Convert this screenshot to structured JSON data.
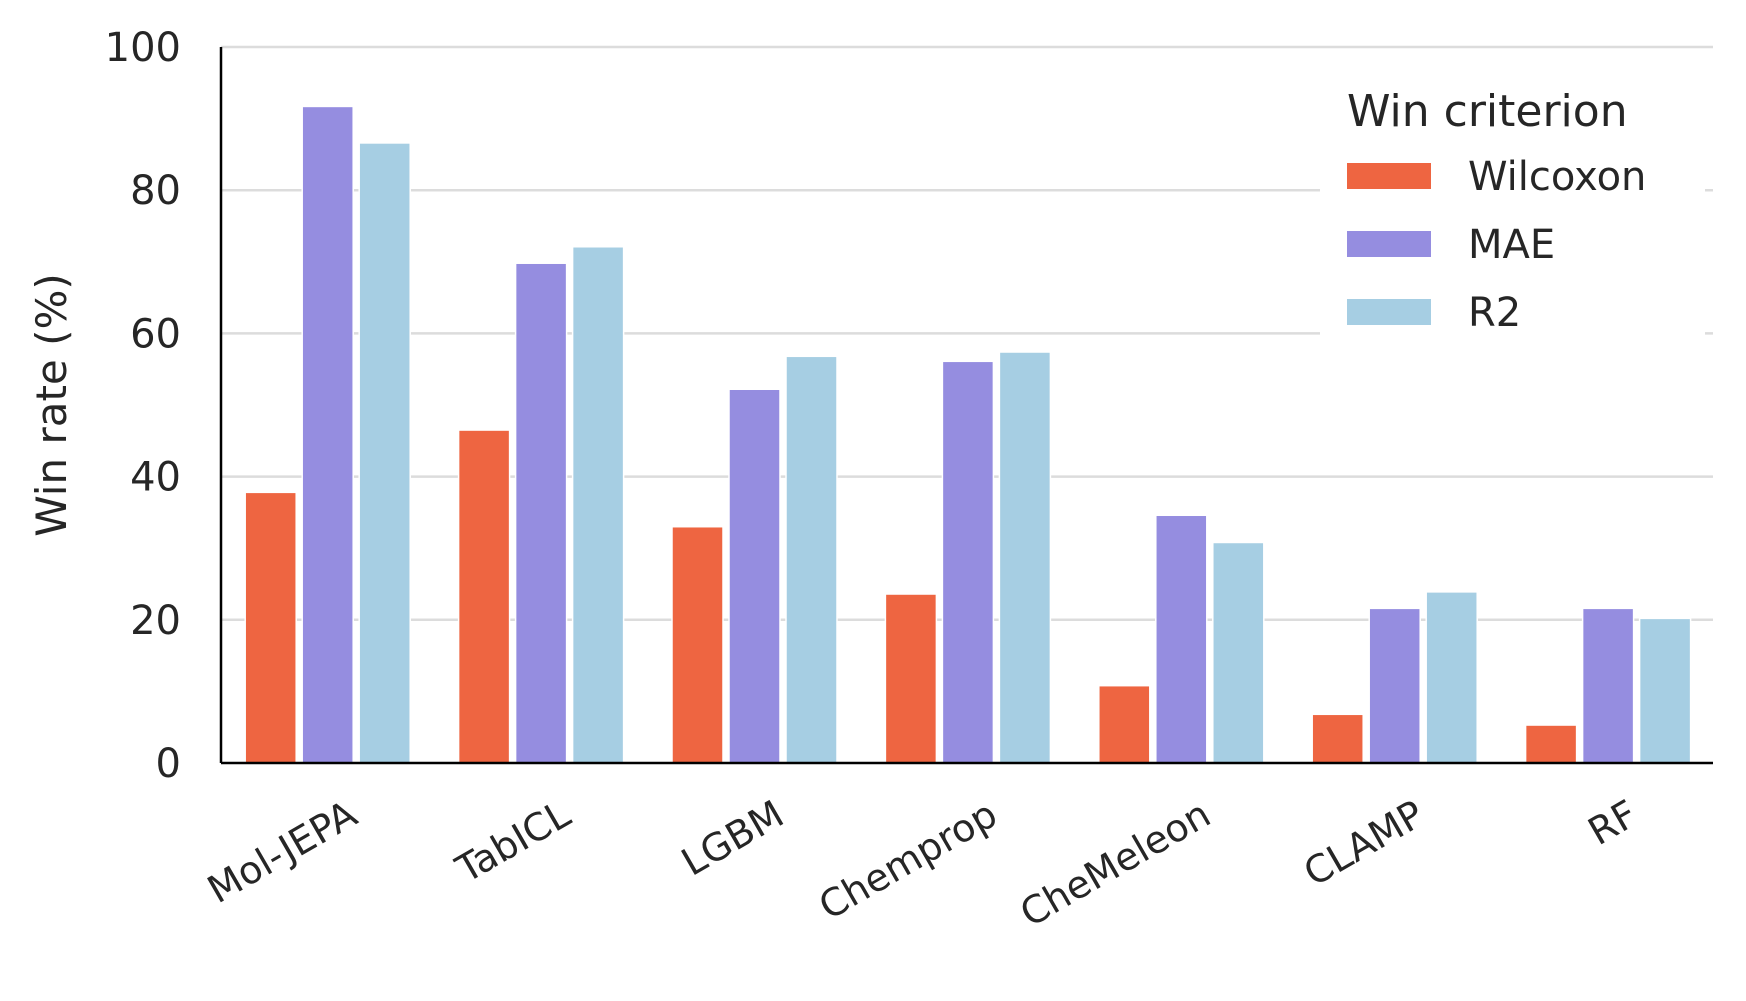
{
  "chart_data": {
    "type": "bar",
    "categories": [
      "Mol-JEPA",
      "TabICL",
      "LGBM",
      "Chemprop",
      "CheMeleon",
      "CLAMP",
      "RF"
    ],
    "series": [
      {
        "name": "Wilcoxon",
        "color": "#ee6541",
        "values": [
          37.8,
          46.5,
          33.0,
          23.6,
          10.8,
          6.8,
          5.3
        ]
      },
      {
        "name": "MAE",
        "color": "#958de0",
        "values": [
          91.7,
          69.8,
          52.2,
          56.1,
          34.6,
          21.6,
          21.6
        ]
      },
      {
        "name": "R2",
        "color": "#a6cee3",
        "values": [
          86.6,
          72.1,
          56.8,
          57.4,
          30.8,
          23.9,
          20.2
        ]
      }
    ],
    "xlabel": "",
    "ylabel": "Win rate (%)",
    "ylim": [
      0,
      100
    ],
    "yticks": [
      0,
      20,
      40,
      60,
      80,
      100
    ],
    "legend": {
      "title": "Win criterion",
      "placement": "top-right"
    },
    "grid": "horizontal"
  }
}
